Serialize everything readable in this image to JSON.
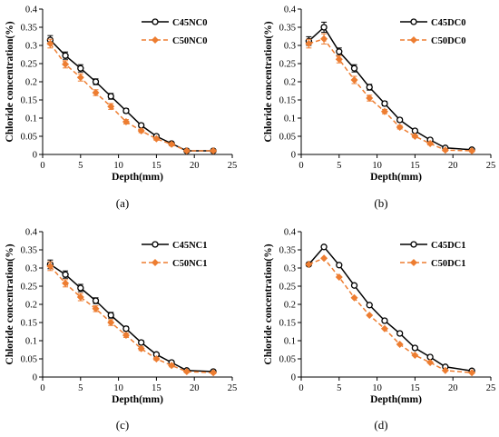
{
  "figure": {
    "captions": [
      "(a)",
      "(b)",
      "(c)",
      "(d)"
    ]
  },
  "style": {
    "series_colors": [
      "#000000",
      "#ED7D31"
    ]
  },
  "chart_data": [
    {
      "type": "line",
      "panel": "(a)",
      "xlabel": "Depth(mm)",
      "ylabel": "Chloride concentration(%)",
      "xlim": [
        0,
        25
      ],
      "ylim": [
        0,
        0.4
      ],
      "xticks": [
        0,
        5,
        10,
        15,
        20,
        25
      ],
      "yticks": [
        0,
        0.05,
        0.1,
        0.15,
        0.2,
        0.25,
        0.3,
        0.35,
        0.4
      ],
      "legend_position": "top-right",
      "grid": false,
      "series": [
        {
          "name": "C45NC0",
          "x": [
            1,
            3,
            5,
            7,
            9,
            11,
            13,
            15,
            17,
            19,
            22.5
          ],
          "y": [
            0.315,
            0.272,
            0.237,
            0.2,
            0.16,
            0.12,
            0.08,
            0.05,
            0.03,
            0.01,
            0.01
          ],
          "err": [
            0.012,
            0.01,
            0.01,
            0.008,
            0.008,
            0.006,
            0.005,
            0.004,
            0.004,
            0.003,
            0.003
          ]
        },
        {
          "name": "C50NC0",
          "x": [
            1,
            3,
            5,
            7,
            9,
            11,
            13,
            15,
            17,
            19,
            22.5
          ],
          "y": [
            0.305,
            0.248,
            0.212,
            0.17,
            0.132,
            0.09,
            0.065,
            0.043,
            0.028,
            0.01,
            0.01
          ],
          "err": [
            0.012,
            0.01,
            0.01,
            0.008,
            0.008,
            0.006,
            0.005,
            0.004,
            0.004,
            0.003,
            0.003
          ]
        }
      ]
    },
    {
      "type": "line",
      "panel": "(b)",
      "xlabel": "Depth(mm)",
      "ylabel": "Chloride concentration(%)",
      "xlim": [
        0,
        25
      ],
      "ylim": [
        0,
        0.4
      ],
      "xticks": [
        0,
        5,
        10,
        15,
        20,
        25
      ],
      "yticks": [
        0,
        0.05,
        0.1,
        0.15,
        0.2,
        0.25,
        0.3,
        0.35,
        0.4
      ],
      "legend_position": "top-right",
      "grid": false,
      "series": [
        {
          "name": "C45DC0",
          "x": [
            1,
            3,
            5,
            7,
            9,
            11,
            13,
            15,
            17,
            19,
            22.5
          ],
          "y": [
            0.312,
            0.35,
            0.283,
            0.237,
            0.185,
            0.14,
            0.095,
            0.065,
            0.04,
            0.018,
            0.013
          ],
          "err": [
            0.012,
            0.014,
            0.01,
            0.01,
            0.008,
            0.006,
            0.005,
            0.004,
            0.004,
            0.003,
            0.003
          ]
        },
        {
          "name": "C50DC0",
          "x": [
            1,
            3,
            5,
            7,
            9,
            11,
            13,
            15,
            17,
            19,
            22.5
          ],
          "y": [
            0.305,
            0.318,
            0.262,
            0.205,
            0.155,
            0.118,
            0.075,
            0.05,
            0.03,
            0.012,
            0.01
          ],
          "err": [
            0.012,
            0.014,
            0.01,
            0.01,
            0.008,
            0.006,
            0.005,
            0.004,
            0.004,
            0.003,
            0.003
          ]
        }
      ]
    },
    {
      "type": "line",
      "panel": "(c)",
      "xlabel": "Depth(mm)",
      "ylabel": "Chloride concentration(%)",
      "xlim": [
        0,
        25
      ],
      "ylim": [
        0,
        0.4
      ],
      "xticks": [
        0,
        5,
        10,
        15,
        20,
        25
      ],
      "yticks": [
        0,
        0.05,
        0.1,
        0.15,
        0.2,
        0.25,
        0.3,
        0.35,
        0.4
      ],
      "legend_position": "top-right",
      "grid": false,
      "series": [
        {
          "name": "C45NC1",
          "x": [
            1,
            3,
            5,
            7,
            9,
            11,
            13,
            15,
            17,
            19,
            22.5
          ],
          "y": [
            0.31,
            0.282,
            0.245,
            0.21,
            0.17,
            0.133,
            0.095,
            0.062,
            0.04,
            0.018,
            0.015
          ],
          "err": [
            0.012,
            0.01,
            0.01,
            0.008,
            0.008,
            0.006,
            0.005,
            0.004,
            0.004,
            0.003,
            0.003
          ]
        },
        {
          "name": "C50NC1",
          "x": [
            1,
            3,
            5,
            7,
            9,
            11,
            13,
            15,
            17,
            19,
            22.5
          ],
          "y": [
            0.305,
            0.258,
            0.22,
            0.188,
            0.15,
            0.115,
            0.078,
            0.05,
            0.032,
            0.015,
            0.012
          ],
          "err": [
            0.012,
            0.01,
            0.01,
            0.008,
            0.008,
            0.006,
            0.005,
            0.004,
            0.004,
            0.003,
            0.003
          ]
        }
      ]
    },
    {
      "type": "line",
      "panel": "(d)",
      "xlabel": "Depth(mm)",
      "ylabel": "Chloride concentration(%)",
      "xlim": [
        0,
        25
      ],
      "ylim": [
        0,
        0.4
      ],
      "xticks": [
        0,
        5,
        10,
        15,
        20,
        25
      ],
      "yticks": [
        0,
        0.05,
        0.1,
        0.15,
        0.2,
        0.25,
        0.3,
        0.35,
        0.4
      ],
      "legend_position": "top-right",
      "grid": false,
      "series": [
        {
          "name": "C45DC1",
          "x": [
            1,
            3,
            5,
            7,
            9,
            11,
            13,
            15,
            17,
            19,
            22.5
          ],
          "y": [
            0.31,
            0.358,
            0.308,
            0.252,
            0.198,
            0.155,
            0.12,
            0.08,
            0.055,
            0.028,
            0.017
          ],
          "err": []
        },
        {
          "name": "C50DC1",
          "x": [
            1,
            3,
            5,
            7,
            9,
            11,
            13,
            15,
            17,
            19,
            22.5
          ],
          "y": [
            0.31,
            0.327,
            0.275,
            0.218,
            0.17,
            0.133,
            0.09,
            0.06,
            0.04,
            0.018,
            0.012
          ],
          "err": []
        }
      ]
    }
  ]
}
